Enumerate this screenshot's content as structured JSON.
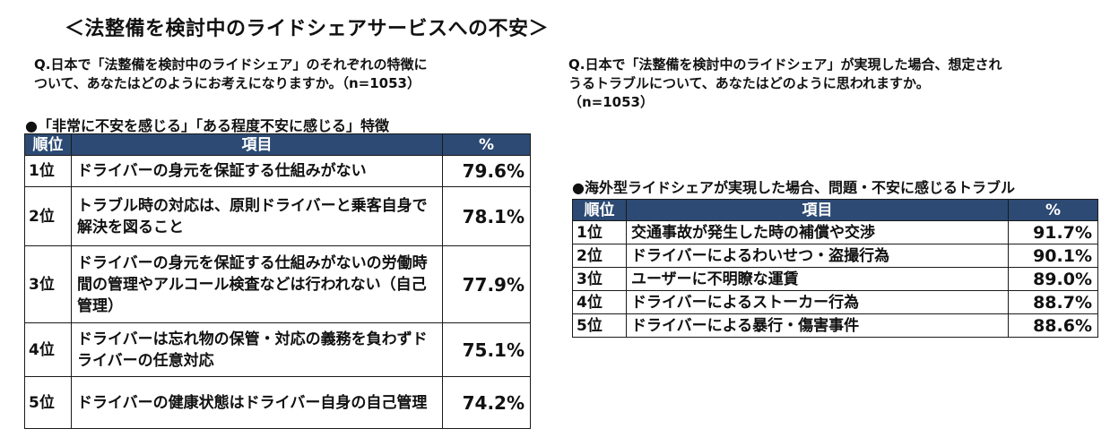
{
  "title": "＜法整備を検討中のライドシェアサービスへの不安＞",
  "left": {
    "question_lines": [
      "Q.日本で「法整備を検討中のライドシェア」のそれぞれの特徴に",
      "ついて、あなたはどのようにお考えになりますか。（n=1053）"
    ],
    "subtitle": "●「非常に不安を感じる」「ある程度不安に感じる」特徴",
    "headers": [
      "順位",
      "項目",
      "%"
    ],
    "rows": [
      {
        "rank": "1位",
        "item": "ドライバーの身元を保証する仕組みがない",
        "pct": "79.6%"
      },
      {
        "rank": "2位",
        "item": "トラブル時の対応は、原則ドライバーと乗客自身で解決を図ること",
        "pct": "78.1%"
      },
      {
        "rank": "3位",
        "item": "ドライバーの身元を保証する仕組みがないの労働時間の管理やアルコール検査などは行われない（自己管理）",
        "pct": "77.9%"
      },
      {
        "rank": "4位",
        "item": "ドライバーは忘れ物の保管・対応の義務を負わずドライバーの任意対応",
        "pct": "75.1%"
      },
      {
        "rank": "5位",
        "item": "ドライバーの健康状態はドライバー自身の自己管理",
        "pct": "74.2%"
      }
    ]
  },
  "right": {
    "question_lines": [
      "Q.日本で「法整備を検討中のライドシェア」が実現した場合、想定され",
      "うるトラブルについて、あなたはどのように思われますか。",
      "（n=1053）"
    ],
    "subtitle": "●海外型ライドシェアが実現した場合、問題・不安に感じるトラブル",
    "headers": [
      "順位",
      "項目",
      "%"
    ],
    "rows": [
      {
        "rank": "1位",
        "item": "交通事故が発生した時の補償や交渉",
        "pct": "91.7%"
      },
      {
        "rank": "2位",
        "item": "ドライバーによるわいせつ・盗撮行為",
        "pct": "90.1%"
      },
      {
        "rank": "3位",
        "item": "ユーザーに不明瞭な運賃",
        "pct": "89.0%"
      },
      {
        "rank": "4位",
        "item": "ドライバーによるストーカー行為",
        "pct": "88.7%"
      },
      {
        "rank": "5位",
        "item": "ドライバーによる暴行・傷害事件",
        "pct": "88.6%"
      }
    ]
  },
  "colors": {
    "header_bg": "#2c4a73",
    "header_text": "#ffffff",
    "border": "#1a1a1a"
  }
}
